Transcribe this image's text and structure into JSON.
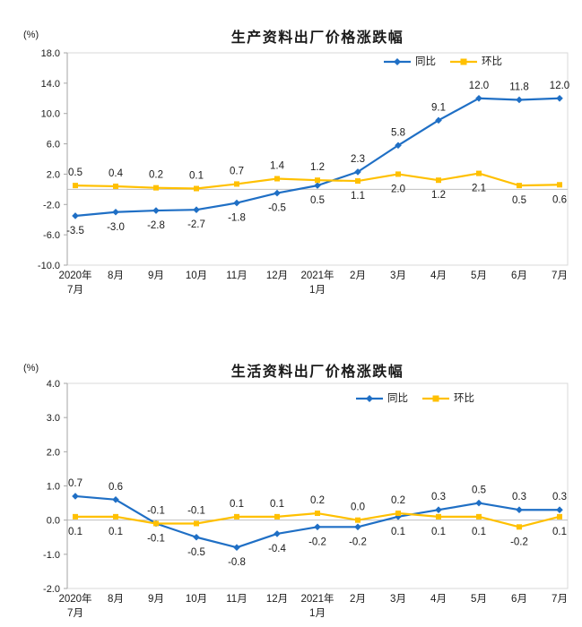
{
  "page": {
    "background": "#ffffff",
    "text_color": "#1a1a1a",
    "axis_line_color": "#a6a6a6",
    "plot_border_color": "#d9d9d9",
    "zero_line_color": "#bfbfbf"
  },
  "chart_data": [
    {
      "type": "line",
      "title": "生产资料出厂价格涨跌幅",
      "unit_label": "(%)",
      "xlabel": "",
      "ylabel": "(%)",
      "categories": [
        "2020年\n7月",
        "8月",
        "9月",
        "10月",
        "11月",
        "12月",
        "2021年\n1月",
        "2月",
        "3月",
        "4月",
        "5月",
        "6月",
        "7月"
      ],
      "series": [
        {
          "name": "同比",
          "color": "#1f6fc5",
          "marker": "diamond",
          "values": [
            -3.5,
            -3.0,
            -2.8,
            -2.7,
            -1.8,
            -0.5,
            0.5,
            2.3,
            5.8,
            9.1,
            12.0,
            11.8,
            12.0
          ]
        },
        {
          "name": "环比",
          "color": "#ffc000",
          "marker": "square",
          "values": [
            0.5,
            0.4,
            0.2,
            0.1,
            0.7,
            1.4,
            1.2,
            1.1,
            2.0,
            1.2,
            2.1,
            0.5,
            0.6
          ]
        }
      ],
      "ylim": [
        -10.0,
        18.0
      ],
      "y_step": 4.0,
      "y_ticks": [
        "18.0",
        "14.0",
        "10.0",
        "6.0",
        "2.0",
        "-2.0",
        "-6.0",
        "-10.0"
      ],
      "grid": false,
      "data_labels": true,
      "legend_position": "top-right-inside"
    },
    {
      "type": "line",
      "title": "生活资料出厂价格涨跌幅",
      "unit_label": "(%)",
      "xlabel": "",
      "ylabel": "(%)",
      "categories": [
        "2020年\n7月",
        "8月",
        "9月",
        "10月",
        "11月",
        "12月",
        "2021年\n1月",
        "2月",
        "3月",
        "4月",
        "5月",
        "6月",
        "7月"
      ],
      "series": [
        {
          "name": "同比",
          "color": "#1f6fc5",
          "marker": "diamond",
          "values": [
            0.7,
            0.6,
            -0.1,
            -0.5,
            -0.8,
            -0.4,
            -0.2,
            -0.2,
            0.1,
            0.3,
            0.5,
            0.3,
            0.3
          ]
        },
        {
          "name": "环比",
          "color": "#ffc000",
          "marker": "square",
          "values": [
            0.1,
            0.1,
            -0.1,
            -0.1,
            0.1,
            0.1,
            0.2,
            0.0,
            0.2,
            0.1,
            0.1,
            -0.2,
            0.1
          ]
        }
      ],
      "ylim": [
        -2.0,
        4.0
      ],
      "y_step": 1.0,
      "y_ticks": [
        "4.0",
        "3.0",
        "2.0",
        "1.0",
        "0.0",
        "-1.0",
        "-2.0"
      ],
      "grid": false,
      "data_labels": true,
      "legend_position": "top-right-inside"
    }
  ]
}
